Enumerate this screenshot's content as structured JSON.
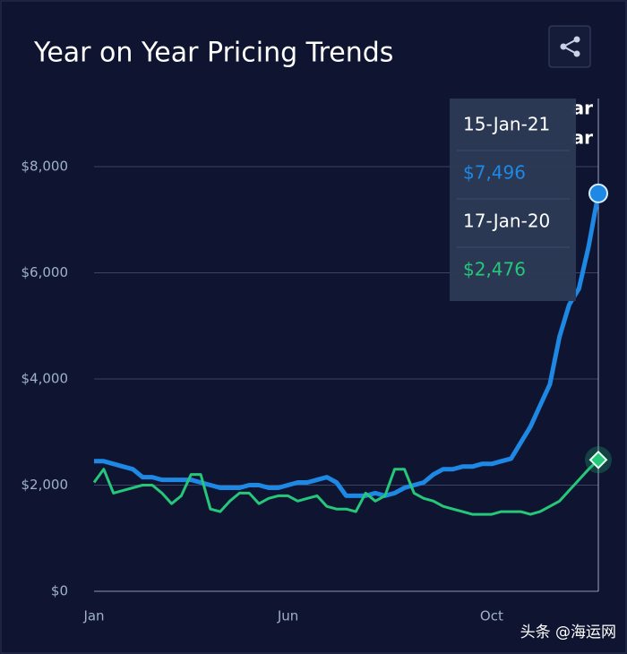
{
  "chart_data": {
    "type": "line",
    "title": "Year on Year Pricing Trends",
    "categories": [
      "Jan",
      null,
      null,
      null,
      null,
      null,
      null,
      null,
      null,
      null,
      null,
      null,
      null,
      null,
      null,
      null,
      null,
      null,
      null,
      null,
      "Jun",
      null,
      null,
      null,
      null,
      null,
      null,
      null,
      null,
      null,
      null,
      null,
      null,
      null,
      null,
      null,
      null,
      null,
      null,
      null,
      null,
      "Oct",
      null,
      null,
      null,
      null,
      null,
      null,
      null,
      null,
      null,
      null,
      null
    ],
    "series": [
      {
        "color": "#1e88e5",
        "values": [
          2450,
          2450,
          2400,
          2350,
          2300,
          2150,
          2150,
          2100,
          2100,
          2100,
          2100,
          2050,
          2000,
          1950,
          1950,
          1950,
          2000,
          2000,
          1950,
          1950,
          2000,
          2050,
          2050,
          2100,
          2150,
          2050,
          1800,
          1800,
          1800,
          1850,
          1800,
          1850,
          1950,
          2000,
          2050,
          2200,
          2300,
          2300,
          2350,
          2350,
          2400,
          2400,
          2450,
          2500,
          2800,
          3100,
          3500,
          3900,
          4800,
          5400,
          5700,
          6500,
          7496
        ]
      },
      {
        "color": "#25c77a",
        "values": [
          2050,
          2300,
          1850,
          1900,
          1950,
          2000,
          2000,
          1850,
          1650,
          1800,
          2200,
          2200,
          1550,
          1500,
          1700,
          1850,
          1850,
          1650,
          1750,
          1800,
          1800,
          1700,
          1750,
          1800,
          1600,
          1550,
          1550,
          1500,
          1850,
          1700,
          1800,
          2300,
          2300,
          1850,
          1750,
          1700,
          1600,
          1550,
          1500,
          1450,
          1450,
          1450,
          1500,
          1500,
          1500,
          1450,
          1500,
          1600,
          1700,
          1900,
          2100,
          2300,
          2476
        ]
      }
    ],
    "ylim": [
      0,
      8000
    ],
    "yticks": [
      {
        "value": 0,
        "label": "$0"
      },
      {
        "value": 2000,
        "label": "$2,000"
      },
      {
        "value": 4000,
        "label": "$4,000"
      },
      {
        "value": 6000,
        "label": "$6,000"
      },
      {
        "value": 8000,
        "label": "$8,000"
      }
    ],
    "grid": true,
    "partial_labels": [
      "ar",
      "ar"
    ],
    "tooltip": [
      {
        "date": "15-Jan-21",
        "text": "$7,496",
        "color": "#1e88e5"
      },
      {
        "date": "17-Jan-20",
        "text": "$2,476",
        "color": "#25c77a"
      }
    ],
    "watermark": "头条 @海运网"
  }
}
